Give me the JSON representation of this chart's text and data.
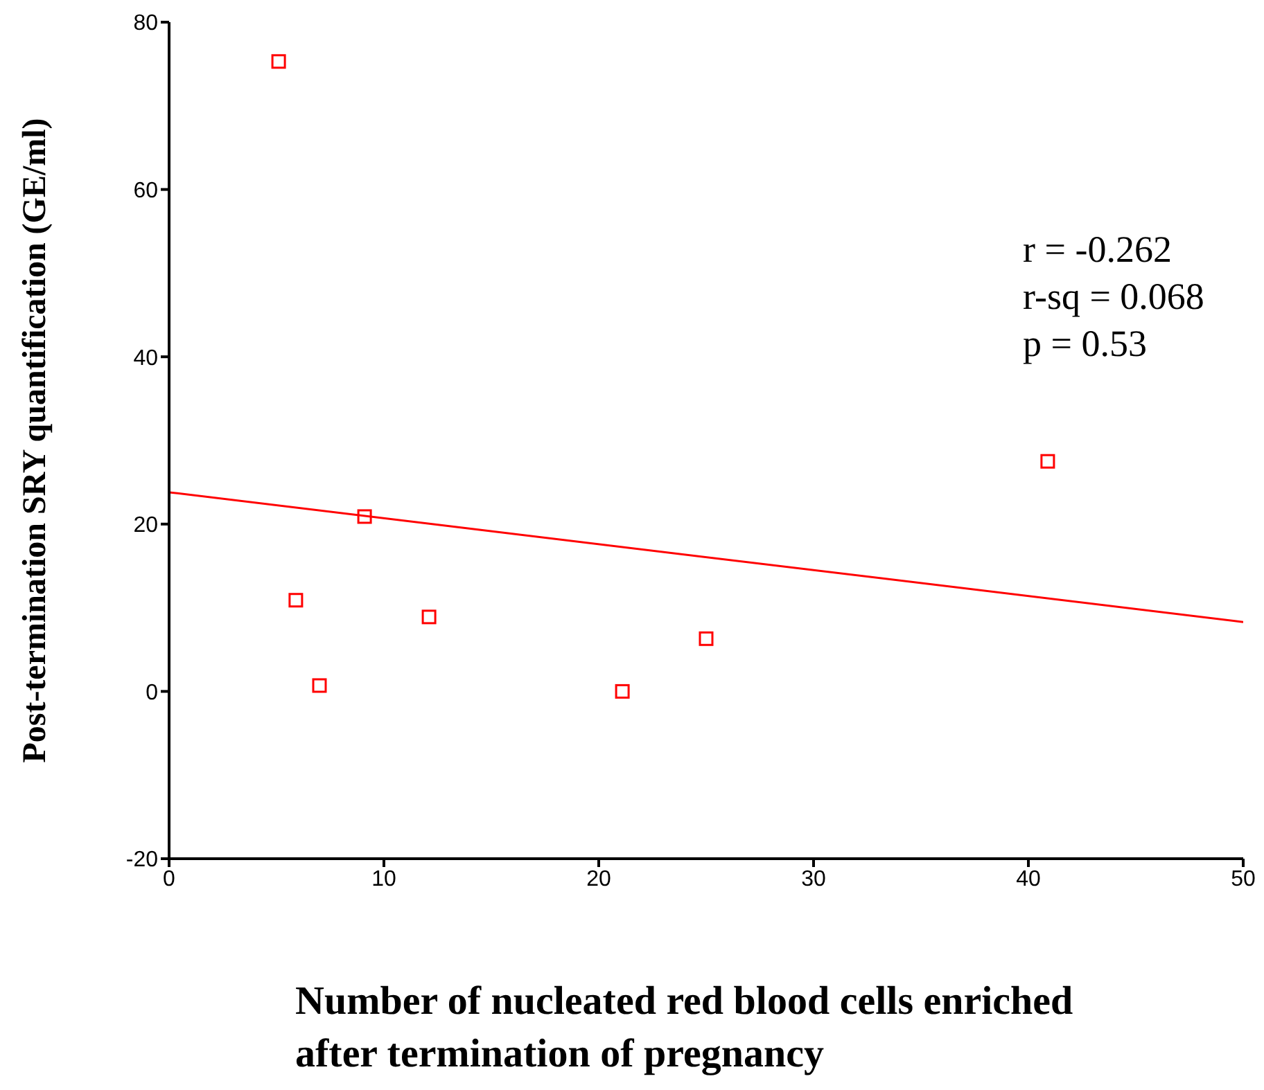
{
  "chart_data": {
    "type": "scatter",
    "xlabel": "Number of nucleated red blood cells enriched after termination of pregnancy",
    "ylabel": "Post-termination SRY quantification (GE/ml)",
    "xlim": [
      0,
      50
    ],
    "xticks": [
      0,
      10,
      20,
      30,
      40,
      50
    ],
    "ylim": [
      -20,
      80
    ],
    "yticks": [
      -20,
      0,
      20,
      40,
      60,
      80
    ],
    "grid": false,
    "legend": false,
    "marker": "square",
    "annotations": [
      "r = -0.262",
      "r-sq = 0.068",
      "p = 0.53"
    ],
    "series": [
      {
        "color": "#ff0000",
        "x": [
          5.1,
          5.9,
          7.0,
          9.1,
          12.1,
          21.1,
          25.0,
          40.9
        ],
        "values": [
          75.3,
          10.9,
          0.7,
          20.9,
          8.9,
          0,
          6.3,
          27.5
        ]
      },
      {
        "type": "line",
        "color": "#ff0000",
        "x": [
          0,
          50
        ],
        "values": [
          23.8,
          8.3
        ],
        "marker": "none"
      }
    ]
  }
}
